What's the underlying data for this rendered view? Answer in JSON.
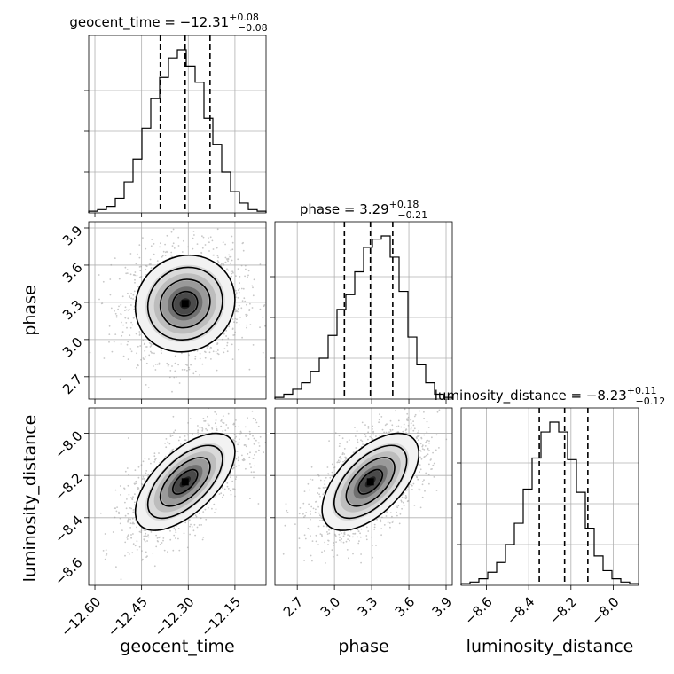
{
  "chart_data": {
    "type": "corner",
    "parameters": [
      {
        "name": "geocent_time",
        "axis_label": "geocent_time",
        "title_main": "geocent_time = −12.31",
        "title_sup": "+0.08",
        "title_sub": "−0.08",
        "median": -12.31,
        "q_low": -12.39,
        "q_high": -12.23,
        "range": [
          -12.62,
          -12.05
        ],
        "ticks": [
          -12.6,
          -12.45,
          -12.3,
          -12.15
        ],
        "tick_labels": [
          "−12.60",
          "−12.45",
          "−12.30",
          "−12.15"
        ],
        "hist_counts": [
          1,
          2,
          4,
          9,
          19,
          33,
          52,
          70,
          83,
          95,
          100,
          90,
          80,
          58,
          42,
          25,
          13,
          6,
          2,
          1
        ]
      },
      {
        "name": "phase",
        "axis_label": "phase",
        "title_main": "phase = 3.29",
        "title_sup": "+0.18",
        "title_sub": "−0.21",
        "median": 3.29,
        "q_low": 3.08,
        "q_high": 3.47,
        "range": [
          2.52,
          3.95
        ],
        "ticks": [
          2.7,
          3.0,
          3.3,
          3.6,
          3.9
        ],
        "tick_labels": [
          "2.7",
          "3.0",
          "3.3",
          "3.6",
          "3.9"
        ],
        "hist_counts": [
          1,
          3,
          6,
          10,
          17,
          25,
          39,
          55,
          64,
          78,
          93,
          98,
          100,
          87,
          66,
          38,
          21,
          10,
          3,
          1
        ]
      },
      {
        "name": "luminosity_distance",
        "axis_label": "luminosity_distance",
        "title_main": "luminosity_distance = −8.23",
        "title_sup": "+0.11",
        "title_sub": "−0.12",
        "median": -8.23,
        "q_low": -8.35,
        "q_high": -8.12,
        "range": [
          -8.72,
          -7.88
        ],
        "ticks": [
          -8.6,
          -8.4,
          -8.2,
          -8.0
        ],
        "tick_labels": [
          "−8.6",
          "−8.4",
          "−8.2",
          "−8.0"
        ],
        "hist_counts": [
          1,
          2,
          4,
          8,
          14,
          25,
          38,
          59,
          78,
          94,
          100,
          94,
          77,
          57,
          35,
          18,
          9,
          4,
          2,
          1
        ]
      }
    ],
    "correlations": {
      "1_0": 0.08,
      "2_0": 0.62,
      "2_1": 0.58
    },
    "contour_levels_sigma": [
      0.5,
      1.0,
      1.5,
      2.0
    ],
    "grid": true
  }
}
